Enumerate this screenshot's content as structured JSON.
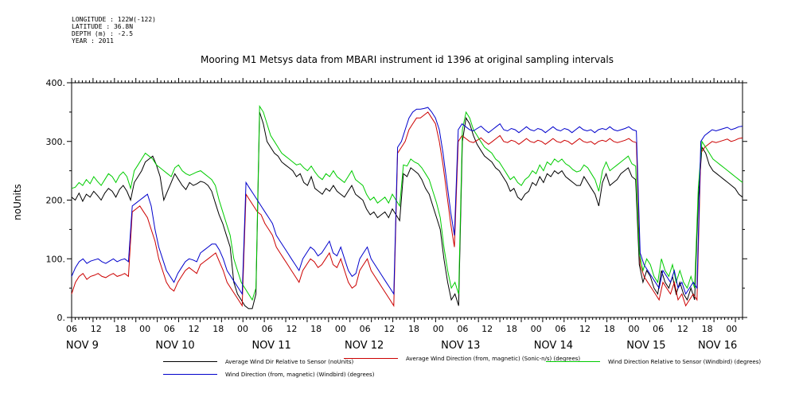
{
  "header": {
    "longitude": "LONGITUDE : 122W(-122)",
    "latitude": "LATITUDE : 36.8N",
    "depth": "DEPTH (m) : -2.5",
    "year": "YEAR : 2011"
  },
  "chart_data": {
    "type": "line",
    "title": "Mooring M1 Metsys data from MBARI instrument id 1396 at original sampling intervals",
    "ylabel": "noUnits",
    "xlabel": "",
    "ylim": [
      0,
      400
    ],
    "yticks": [
      "0.",
      "100.",
      "200.",
      "300.",
      "400."
    ],
    "xlim_hours": [
      0,
      188
    ],
    "hour_ticks": [
      "06",
      "12",
      "18",
      "00",
      "06",
      "12",
      "18",
      "00",
      "06",
      "12",
      "18",
      "00",
      "06",
      "12",
      "18",
      "00",
      "06",
      "12",
      "18",
      "00",
      "06",
      "12",
      "18",
      "00",
      "06",
      "12",
      "18",
      "00"
    ],
    "day_labels": [
      "NOV  9",
      "NOV 10",
      "NOV 11",
      "NOV 12",
      "NOV 13",
      "NOV 14",
      "NOV 15",
      "NOV 16"
    ],
    "grid": false,
    "legend_position": "bottom",
    "series": [
      {
        "name": "Average Wind Dir Relative to Sensor (noUnits)",
        "color": "#000000",
        "values": [
          205,
          200,
          212,
          198,
          210,
          205,
          215,
          208,
          200,
          212,
          220,
          215,
          205,
          218,
          225,
          215,
          200,
          230,
          240,
          250,
          265,
          270,
          275,
          260,
          240,
          200,
          215,
          230,
          245,
          235,
          225,
          218,
          230,
          225,
          228,
          232,
          230,
          225,
          215,
          195,
          175,
          160,
          140,
          120,
          60,
          40,
          30,
          20,
          15,
          15,
          40,
          350,
          330,
          300,
          290,
          280,
          275,
          265,
          260,
          255,
          250,
          240,
          245,
          230,
          225,
          240,
          220,
          215,
          210,
          220,
          215,
          225,
          215,
          210,
          205,
          215,
          225,
          210,
          205,
          200,
          185,
          175,
          180,
          170,
          175,
          180,
          170,
          185,
          175,
          165,
          245,
          240,
          255,
          250,
          245,
          235,
          220,
          210,
          190,
          170,
          150,
          100,
          60,
          30,
          40,
          20,
          300,
          340,
          330,
          310,
          295,
          285,
          275,
          270,
          265,
          255,
          250,
          240,
          230,
          215,
          220,
          205,
          200,
          210,
          215,
          230,
          225,
          240,
          230,
          245,
          240,
          250,
          245,
          250,
          240,
          235,
          230,
          225,
          225,
          240,
          230,
          220,
          210,
          190,
          230,
          245,
          225,
          230,
          235,
          245,
          250,
          255,
          240,
          235,
          90,
          60,
          80,
          70,
          50,
          40,
          80,
          60,
          50,
          70,
          40,
          60,
          40,
          30,
          50,
          30,
          200,
          290,
          280,
          260,
          250,
          245,
          240,
          235,
          230,
          225,
          220,
          210,
          205
        ]
      },
      {
        "name": "Average Wind Direction (from, magnetic) (Sonic-n/s) (degrees)",
        "color": "#cc0000",
        "values": [
          40,
          60,
          70,
          75,
          65,
          70,
          72,
          75,
          70,
          68,
          72,
          75,
          70,
          72,
          75,
          70,
          180,
          185,
          190,
          180,
          170,
          150,
          130,
          100,
          80,
          60,
          50,
          45,
          60,
          70,
          80,
          85,
          80,
          75,
          90,
          95,
          100,
          105,
          110,
          95,
          80,
          60,
          50,
          40,
          30,
          20,
          210,
          200,
          190,
          180,
          175,
          160,
          150,
          140,
          120,
          110,
          100,
          90,
          80,
          70,
          60,
          80,
          90,
          100,
          95,
          85,
          90,
          100,
          110,
          90,
          85,
          100,
          80,
          60,
          50,
          55,
          80,
          90,
          100,
          80,
          70,
          60,
          50,
          40,
          30,
          20,
          280,
          290,
          300,
          320,
          330,
          340,
          340,
          345,
          350,
          340,
          330,
          300,
          260,
          210,
          160,
          120,
          300,
          310,
          305,
          300,
          298,
          302,
          306,
          300,
          295,
          300,
          305,
          310,
          300,
          298,
          302,
          300,
          295,
          300,
          305,
          300,
          298,
          302,
          300,
          295,
          300,
          305,
          300,
          298,
          302,
          300,
          295,
          300,
          305,
          300,
          298,
          300,
          295,
          300,
          302,
          300,
          305,
          300,
          298,
          300,
          302,
          305,
          300,
          298,
          90,
          70,
          60,
          50,
          40,
          30,
          60,
          50,
          40,
          60,
          30,
          40,
          20,
          30,
          40,
          30,
          280,
          290,
          295,
          300,
          298,
          300,
          302,
          304,
          300,
          302,
          305,
          306
        ]
      },
      {
        "name": "Wind Direction Relative to Sensor (Windbird) (degrees)",
        "color": "#00cc00",
        "values": [
          220,
          222,
          230,
          225,
          235,
          228,
          240,
          232,
          225,
          235,
          245,
          240,
          230,
          242,
          248,
          240,
          220,
          250,
          260,
          270,
          280,
          275,
          270,
          260,
          255,
          250,
          245,
          240,
          255,
          260,
          250,
          245,
          242,
          245,
          248,
          250,
          245,
          240,
          235,
          225,
          200,
          180,
          160,
          140,
          100,
          80,
          60,
          50,
          40,
          30,
          50,
          360,
          350,
          330,
          310,
          300,
          290,
          280,
          275,
          270,
          265,
          260,
          262,
          255,
          250,
          258,
          248,
          240,
          235,
          245,
          240,
          250,
          240,
          235,
          230,
          240,
          250,
          235,
          230,
          225,
          210,
          200,
          205,
          195,
          200,
          205,
          195,
          210,
          200,
          190,
          260,
          258,
          270,
          265,
          262,
          255,
          245,
          235,
          215,
          195,
          170,
          120,
          80,
          50,
          60,
          40,
          320,
          350,
          340,
          320,
          310,
          300,
          290,
          285,
          280,
          270,
          265,
          255,
          245,
          235,
          240,
          230,
          225,
          235,
          240,
          250,
          245,
          260,
          250,
          265,
          260,
          270,
          265,
          270,
          262,
          258,
          252,
          248,
          250,
          260,
          255,
          245,
          235,
          215,
          250,
          265,
          250,
          255,
          260,
          265,
          270,
          275,
          262,
          258,
          110,
          80,
          100,
          90,
          70,
          60,
          100,
          80,
          70,
          90,
          60,
          80,
          60,
          50,
          70,
          50,
          220,
          300,
          290,
          280,
          270,
          265,
          260,
          255,
          250,
          245,
          240,
          235,
          230
        ]
      },
      {
        "name": "Wind Direction (from, magnetic) (Windbird) (degrees)",
        "color": "#0000cc",
        "values": [
          70,
          85,
          95,
          100,
          92,
          96,
          98,
          100,
          95,
          92,
          96,
          100,
          95,
          98,
          100,
          95,
          190,
          195,
          200,
          205,
          210,
          190,
          150,
          120,
          100,
          80,
          70,
          60,
          75,
          85,
          95,
          100,
          98,
          95,
          110,
          115,
          120,
          125,
          125,
          115,
          100,
          80,
          70,
          60,
          50,
          40,
          230,
          220,
          210,
          200,
          190,
          180,
          170,
          160,
          140,
          130,
          120,
          110,
          100,
          90,
          80,
          100,
          110,
          120,
          115,
          105,
          110,
          120,
          130,
          110,
          105,
          120,
          100,
          80,
          70,
          75,
          100,
          110,
          120,
          100,
          90,
          80,
          70,
          60,
          50,
          40,
          290,
          300,
          320,
          340,
          350,
          355,
          355,
          356,
          358,
          350,
          340,
          320,
          280,
          230,
          180,
          140,
          320,
          330,
          325,
          320,
          318,
          322,
          326,
          320,
          315,
          320,
          325,
          330,
          320,
          318,
          322,
          320,
          315,
          320,
          325,
          320,
          318,
          322,
          320,
          315,
          320,
          325,
          320,
          318,
          322,
          320,
          315,
          320,
          325,
          320,
          318,
          320,
          315,
          320,
          322,
          320,
          325,
          320,
          318,
          320,
          322,
          325,
          320,
          318,
          110,
          90,
          80,
          70,
          60,
          50,
          80,
          70,
          60,
          80,
          50,
          60,
          40,
          50,
          60,
          50,
          300,
          310,
          315,
          320,
          318,
          320,
          322,
          324,
          320,
          322,
          325,
          326
        ]
      }
    ]
  }
}
